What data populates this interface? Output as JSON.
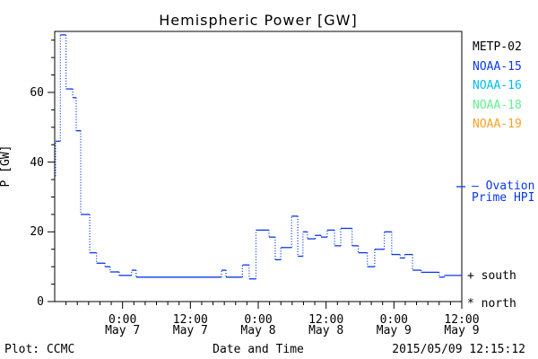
{
  "footer": {
    "plot_credit": "Plot: CCMC",
    "timestamp": "2015/05/09 12:15:12"
  },
  "chart_data": {
    "type": "line",
    "line_style": "stepped horizontal segments with dotted vertical risers",
    "title": "Hemispheric Power [GW]",
    "xlabel": "Date and Time",
    "ylabel": "P [GW]",
    "x_range_note": "2015-05-06 12:00 to 2015-05-09 12:00 UT (72 hours)",
    "xlim_hours": [
      0,
      72
    ],
    "ylim": [
      0,
      77.5
    ],
    "yticks": [
      0,
      20,
      40,
      60
    ],
    "y_minor_step": 5,
    "x_major_step_hours": 12,
    "x_minor_step_hours": 2,
    "grid": false,
    "x_tick_labels": [
      {
        "time": "0:00",
        "date": "May 7"
      },
      {
        "time": "12:00",
        "date": "May 7"
      },
      {
        "time": "0:00",
        "date": "May 8"
      },
      {
        "time": "12:00",
        "date": "May 8"
      },
      {
        "time": "0:00",
        "date": "May 9"
      },
      {
        "time": "12:00",
        "date": "May 9"
      }
    ],
    "series": [
      {
        "name": "Ovation Prime HPI",
        "color": "#0a38ee",
        "marker": "none",
        "points_hours_vs_gw": [
          [
            0,
            36
          ],
          [
            0.15,
            46
          ],
          [
            1.0,
            76.5
          ],
          [
            2.0,
            61
          ],
          [
            3.2,
            58.5
          ],
          [
            3.8,
            49
          ],
          [
            4.6,
            25
          ],
          [
            6.2,
            14
          ],
          [
            7.4,
            11
          ],
          [
            8.9,
            10
          ],
          [
            9.8,
            8.5
          ],
          [
            11.4,
            7.5
          ],
          [
            13.6,
            9
          ],
          [
            14.4,
            7
          ],
          [
            29.5,
            9
          ],
          [
            30.3,
            7
          ],
          [
            33.2,
            10.5
          ],
          [
            34.4,
            6.5
          ],
          [
            35.6,
            20.5
          ],
          [
            37.9,
            18.5
          ],
          [
            39.0,
            12
          ],
          [
            40.0,
            15.5
          ],
          [
            41.9,
            24.5
          ],
          [
            43.0,
            13
          ],
          [
            43.9,
            20
          ],
          [
            44.7,
            18
          ],
          [
            46.1,
            19
          ],
          [
            47.1,
            18.5
          ],
          [
            48.2,
            20.5
          ],
          [
            49.5,
            16
          ],
          [
            50.6,
            21
          ],
          [
            52.6,
            16
          ],
          [
            53.7,
            14
          ],
          [
            55.3,
            10
          ],
          [
            56.6,
            15
          ],
          [
            58.3,
            20
          ],
          [
            59.6,
            13.5
          ],
          [
            61.1,
            12.5
          ],
          [
            61.9,
            13.5
          ],
          [
            63.3,
            9
          ],
          [
            64.8,
            8.4
          ],
          [
            68.0,
            7
          ],
          [
            68.9,
            7.5
          ],
          [
            72,
            7.5
          ]
        ]
      }
    ],
    "legend_position": "right margin",
    "legend_satellites": [
      {
        "label": "METP-02",
        "color": "#000000"
      },
      {
        "label": "NOAA-15",
        "color": "#0a38ee"
      },
      {
        "label": "NOAA-16",
        "color": "#00bdf0"
      },
      {
        "label": "NOAA-18",
        "color": "#63ef90"
      },
      {
        "label": "NOAA-19",
        "color": "#ffa022"
      }
    ],
    "annotations": {
      "ovation_label": "— Ovation\nPrime HPI",
      "south_marker": "+ south",
      "north_marker": "* north"
    }
  }
}
